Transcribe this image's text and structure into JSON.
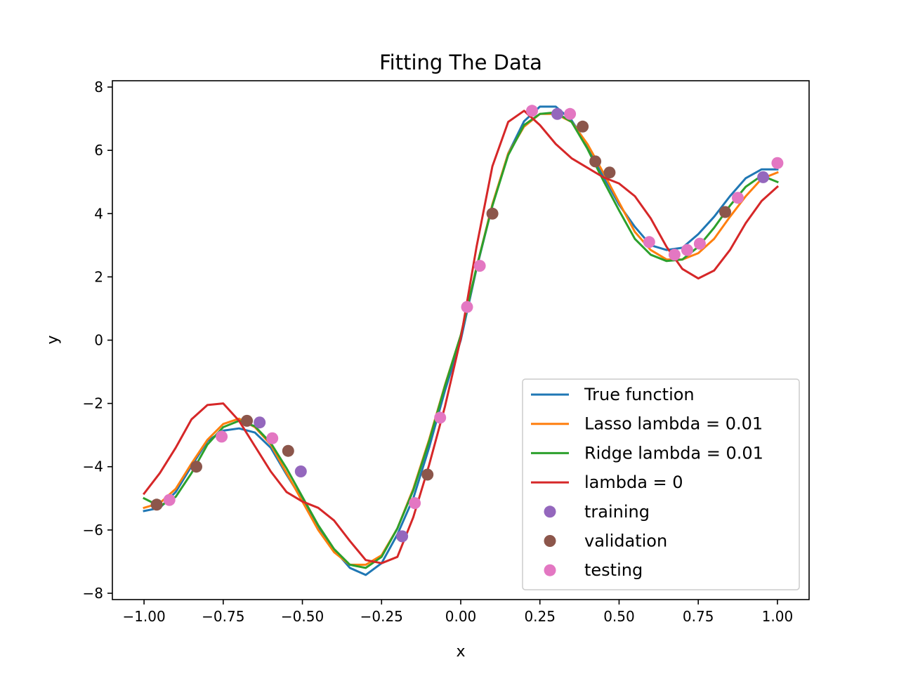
{
  "chart_data": {
    "type": "line",
    "title": "Fitting The Data",
    "xlabel": "x",
    "ylabel": "y",
    "xlim": [
      -1.1,
      1.1
    ],
    "ylim": [
      -8.2,
      8.2
    ],
    "xticks": [
      -1.0,
      -0.75,
      -0.5,
      -0.25,
      0.0,
      0.25,
      0.5,
      0.75,
      1.0
    ],
    "xtick_labels": [
      "−1.00",
      "−0.75",
      "−0.50",
      "−0.25",
      "0.00",
      "0.25",
      "0.50",
      "0.75",
      "1.00"
    ],
    "yticks": [
      -8,
      -6,
      -4,
      -2,
      0,
      2,
      4,
      6,
      8
    ],
    "ytick_labels": [
      "−8",
      "−6",
      "−4",
      "−2",
      "0",
      "2",
      "4",
      "6",
      "8"
    ],
    "grid": false,
    "legend_position": "bottom-right",
    "series": [
      {
        "name": "True function",
        "kind": "line",
        "color": "#1f77b4",
        "x": [
          -1.0,
          -0.95,
          -0.9,
          -0.85,
          -0.8,
          -0.75,
          -0.7,
          -0.65,
          -0.6,
          -0.55,
          -0.5,
          -0.45,
          -0.4,
          -0.35,
          -0.3,
          -0.25,
          -0.2,
          -0.15,
          -0.1,
          -0.05,
          0.0,
          0.05,
          0.1,
          0.15,
          0.2,
          0.25,
          0.3,
          0.35,
          0.4,
          0.45,
          0.5,
          0.55,
          0.6,
          0.65,
          0.7,
          0.75,
          0.8,
          0.85,
          0.9,
          0.95,
          1.0
        ],
        "y": [
          -5.4,
          -5.3,
          -4.8,
          -3.98,
          -3.19,
          -2.86,
          -2.79,
          -2.92,
          -3.4,
          -4.25,
          -5.05,
          -5.9,
          -6.62,
          -7.2,
          -7.42,
          -7.05,
          -6.14,
          -5.0,
          -3.4,
          -1.6,
          0.0,
          2.26,
          4.26,
          5.9,
          6.92,
          7.38,
          7.38,
          6.95,
          6.16,
          5.18,
          4.28,
          3.58,
          3.0,
          2.85,
          2.92,
          3.35,
          3.9,
          4.55,
          5.12,
          5.4,
          5.4
        ]
      },
      {
        "name": "Lasso lambda = 0.01",
        "kind": "line",
        "color": "#ff7f0e",
        "x": [
          -1.0,
          -0.95,
          -0.9,
          -0.85,
          -0.8,
          -0.75,
          -0.7,
          -0.65,
          -0.6,
          -0.55,
          -0.5,
          -0.45,
          -0.4,
          -0.35,
          -0.3,
          -0.25,
          -0.2,
          -0.15,
          -0.1,
          -0.05,
          0.0,
          0.05,
          0.1,
          0.15,
          0.2,
          0.25,
          0.3,
          0.35,
          0.4,
          0.45,
          0.5,
          0.55,
          0.6,
          0.65,
          0.7,
          0.75,
          0.8,
          0.85,
          0.9,
          0.95,
          1.0
        ],
        "y": [
          -5.3,
          -5.15,
          -4.7,
          -3.9,
          -3.15,
          -2.65,
          -2.48,
          -2.75,
          -3.3,
          -4.2,
          -5.1,
          -6.0,
          -6.7,
          -7.1,
          -7.1,
          -6.8,
          -5.95,
          -4.7,
          -3.15,
          -1.42,
          0.15,
          2.3,
          4.3,
          5.9,
          6.75,
          7.15,
          7.15,
          6.9,
          6.2,
          5.3,
          4.35,
          3.42,
          2.85,
          2.55,
          2.55,
          2.75,
          3.2,
          3.9,
          4.55,
          5.1,
          5.3
        ]
      },
      {
        "name": "Ridge lambda = 0.01",
        "kind": "line",
        "color": "#2ca02c",
        "x": [
          -1.0,
          -0.95,
          -0.9,
          -0.85,
          -0.8,
          -0.75,
          -0.7,
          -0.65,
          -0.6,
          -0.55,
          -0.5,
          -0.45,
          -0.4,
          -0.35,
          -0.3,
          -0.25,
          -0.2,
          -0.15,
          -0.1,
          -0.05,
          0.0,
          0.05,
          0.1,
          0.15,
          0.2,
          0.25,
          0.3,
          0.35,
          0.4,
          0.45,
          0.5,
          0.55,
          0.6,
          0.65,
          0.7,
          0.75,
          0.8,
          0.85,
          0.9,
          0.95,
          1.0
        ],
        "y": [
          -5.0,
          -5.25,
          -4.95,
          -4.2,
          -3.3,
          -2.75,
          -2.55,
          -2.72,
          -3.25,
          -4.05,
          -4.95,
          -5.85,
          -6.6,
          -7.1,
          -7.2,
          -6.85,
          -5.95,
          -4.75,
          -3.2,
          -1.45,
          0.15,
          2.3,
          4.25,
          5.85,
          6.8,
          7.15,
          7.2,
          6.9,
          6.05,
          5.05,
          4.1,
          3.2,
          2.7,
          2.5,
          2.55,
          2.95,
          3.55,
          4.25,
          4.85,
          5.2,
          5.0
        ]
      },
      {
        "name": "lambda = 0",
        "kind": "line",
        "color": "#d62728",
        "x": [
          -1.0,
          -0.95,
          -0.9,
          -0.85,
          -0.8,
          -0.75,
          -0.7,
          -0.65,
          -0.6,
          -0.55,
          -0.5,
          -0.45,
          -0.4,
          -0.35,
          -0.3,
          -0.25,
          -0.2,
          -0.15,
          -0.1,
          -0.05,
          0.0,
          0.05,
          0.1,
          0.15,
          0.2,
          0.25,
          0.3,
          0.35,
          0.4,
          0.45,
          0.5,
          0.55,
          0.6,
          0.65,
          0.7,
          0.75,
          0.8,
          0.85,
          0.9,
          0.95,
          1.0
        ],
        "y": [
          -4.85,
          -4.2,
          -3.4,
          -2.5,
          -2.05,
          -2.0,
          -2.55,
          -3.35,
          -4.15,
          -4.8,
          -5.1,
          -5.3,
          -5.7,
          -6.35,
          -6.95,
          -7.05,
          -6.85,
          -5.6,
          -3.95,
          -2.1,
          0.05,
          2.95,
          5.5,
          6.9,
          7.25,
          6.8,
          6.2,
          5.75,
          5.45,
          5.15,
          4.95,
          4.55,
          3.85,
          2.95,
          2.25,
          1.95,
          2.2,
          2.85,
          3.7,
          4.4,
          4.85
        ]
      },
      {
        "name": "training",
        "kind": "scatter",
        "color": "#9467bd",
        "x": [
          -0.635,
          -0.505,
          -0.185,
          0.305,
          0.955
        ],
        "y": [
          -2.6,
          -4.15,
          -6.2,
          7.15,
          5.15
        ]
      },
      {
        "name": "validation",
        "kind": "scatter",
        "color": "#8c564b",
        "x": [
          -0.96,
          -0.835,
          -0.675,
          -0.545,
          -0.105,
          0.1,
          0.385,
          0.425,
          0.47,
          0.835
        ],
        "y": [
          -5.2,
          -4.0,
          -2.55,
          -3.5,
          -4.25,
          4.0,
          6.75,
          5.65,
          5.3,
          4.05
        ]
      },
      {
        "name": "testing",
        "kind": "scatter",
        "color": "#e377c2",
        "x": [
          -0.92,
          -0.755,
          -0.595,
          -0.145,
          -0.065,
          0.02,
          0.06,
          0.225,
          0.345,
          0.595,
          0.675,
          0.715,
          0.755,
          0.875,
          1.0
        ],
        "y": [
          -5.05,
          -3.05,
          -3.1,
          -5.15,
          -2.45,
          1.05,
          2.35,
          7.25,
          7.15,
          3.1,
          2.7,
          2.85,
          3.05,
          4.5,
          5.6
        ]
      }
    ]
  }
}
